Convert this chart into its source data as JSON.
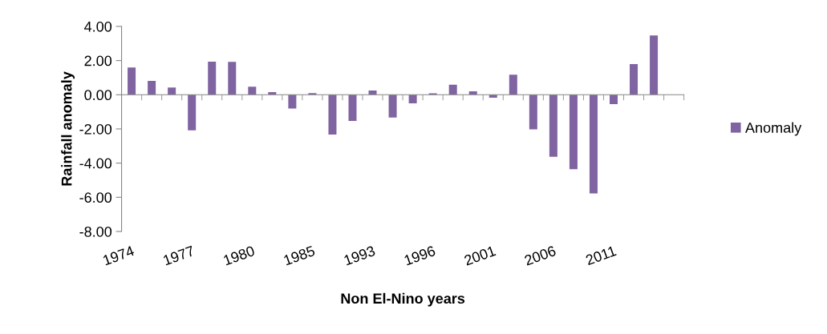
{
  "chart_data": {
    "type": "bar",
    "xlabel": "Non El-Nino years",
    "ylabel": "Rainfall anomaly",
    "categories": [
      "1974",
      null,
      null,
      "1977",
      null,
      null,
      "1980",
      null,
      null,
      "1985",
      null,
      null,
      "1993",
      null,
      null,
      "1996",
      null,
      null,
      "2001",
      null,
      null,
      "2006",
      null,
      null,
      "2011",
      null,
      null,
      null
    ],
    "series": [
      {
        "name": "Anomaly",
        "color": "#8064a2",
        "values": [
          1.59,
          0.81,
          0.42,
          -2.08,
          1.94,
          1.92,
          0.47,
          0.16,
          -0.81,
          0.09,
          -2.33,
          -1.53,
          0.25,
          -1.33,
          -0.5,
          0.08,
          0.59,
          0.2,
          -0.17,
          1.17,
          -2.02,
          -3.63,
          -4.36,
          -5.77,
          -0.55,
          1.8,
          3.47,
          null
        ]
      }
    ],
    "ylim": [
      -8,
      4
    ],
    "yticks": [
      {
        "value": -8,
        "label": "-8.00"
      },
      {
        "value": -6,
        "label": "-6.00"
      },
      {
        "value": -4,
        "label": "-4.00"
      },
      {
        "value": -2,
        "label": "-2.00"
      },
      {
        "value": 0,
        "label": "0.00"
      },
      {
        "value": 2,
        "label": "2.00"
      },
      {
        "value": 4,
        "label": "4.00"
      }
    ],
    "legend": "right"
  }
}
